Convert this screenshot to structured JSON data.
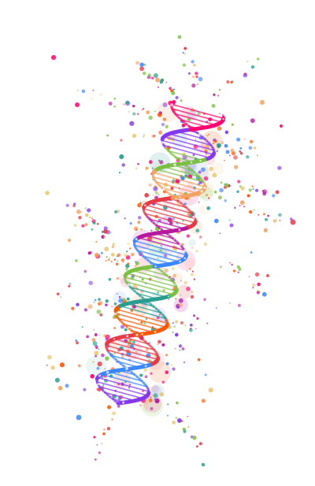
{
  "artwork": {
    "subject": "dna-double-helix",
    "style": "watercolor-splatter",
    "background_color": "#ffffff",
    "palette": [
      "#e63946",
      "#f4a261",
      "#e9c46a",
      "#7bc043",
      "#2a9d8f",
      "#3a86ff",
      "#8338ec",
      "#b5179e",
      "#ff006e",
      "#fb5607"
    ]
  }
}
